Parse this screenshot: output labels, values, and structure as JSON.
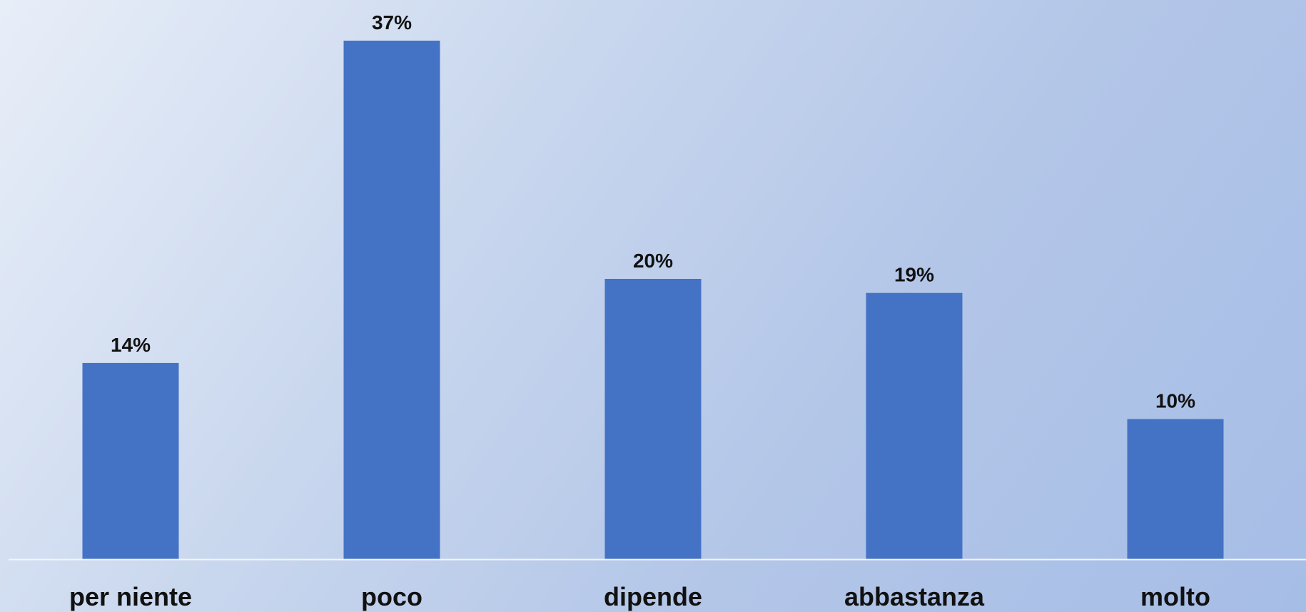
{
  "chart_data": {
    "type": "bar",
    "categories": [
      "per niente",
      "poco",
      "dipende",
      "abbastanza",
      "molto"
    ],
    "values": [
      14,
      37,
      20,
      19,
      10
    ],
    "value_labels": [
      "14%",
      "37%",
      "20%",
      "19%",
      "10%"
    ],
    "unit": "%",
    "title": "",
    "xlabel": "",
    "ylabel": "",
    "ylim": [
      0,
      37
    ],
    "grid": false,
    "legend": "none",
    "bar_color": "#4472c4",
    "axis_color": "#f2f5fb"
  }
}
